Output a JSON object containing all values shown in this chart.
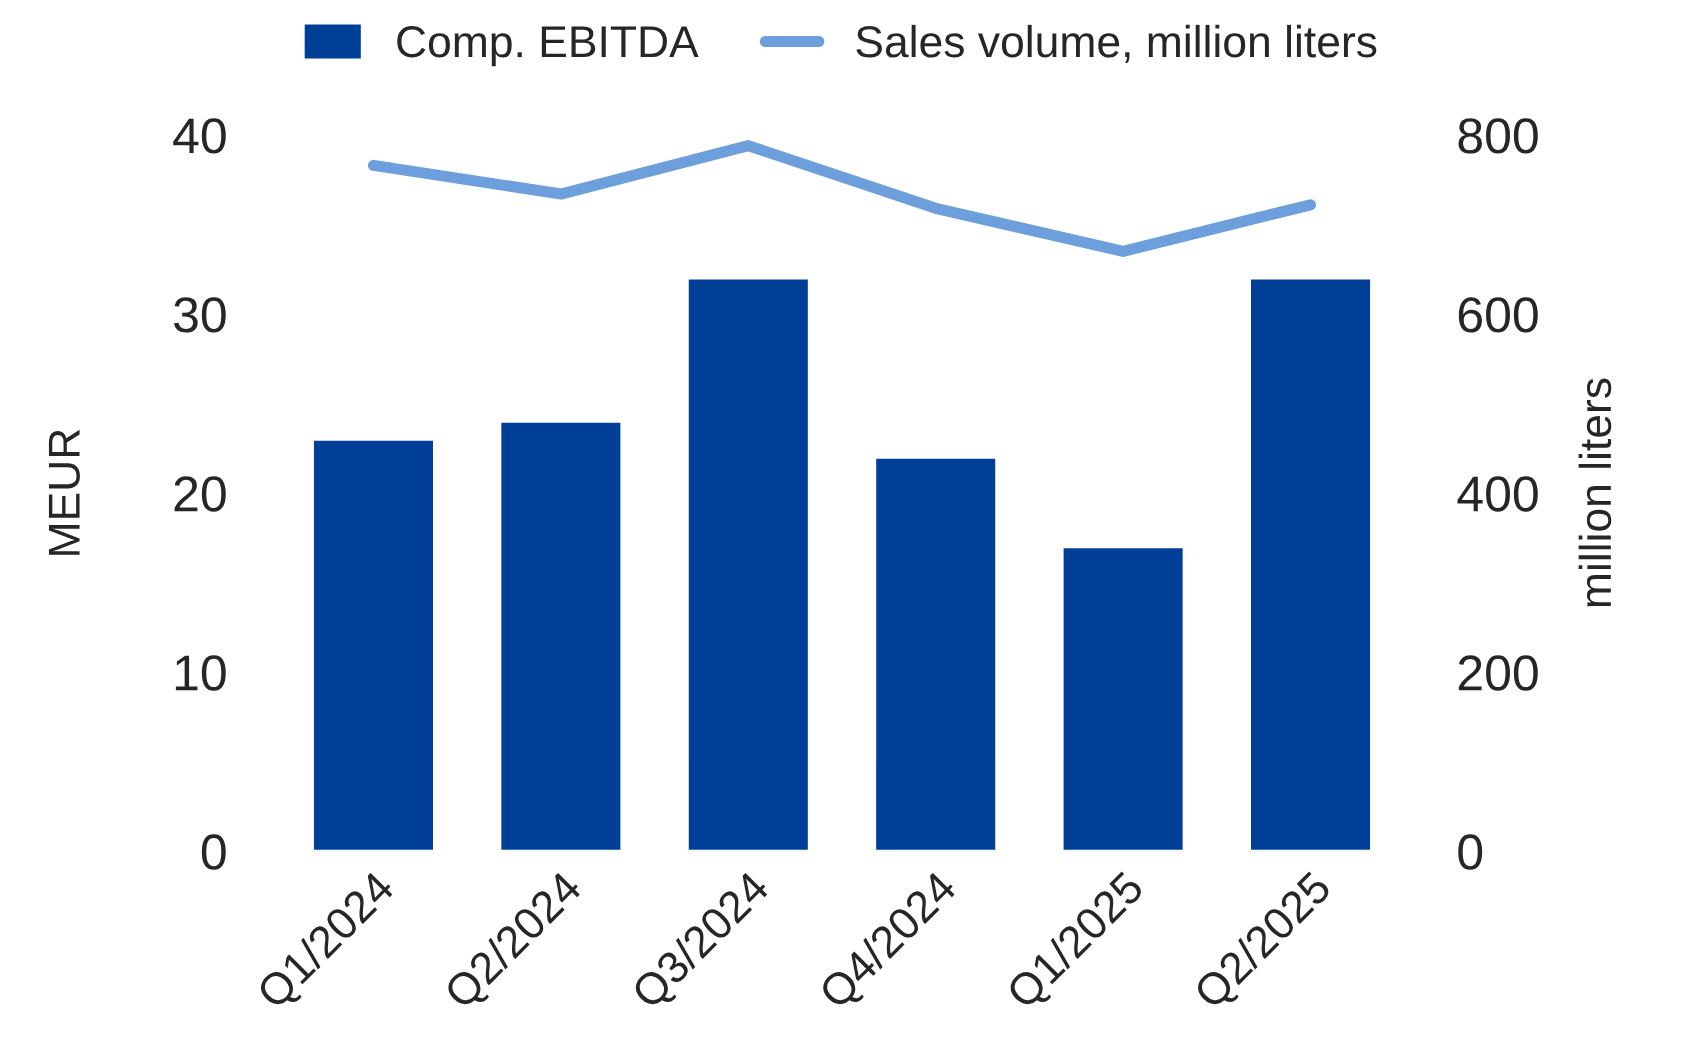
{
  "chart_data": {
    "type": "bar",
    "categories": [
      "Q1/2024",
      "Q2/2024",
      "Q3/2024",
      "Q4/2024",
      "Q1/2025",
      "Q2/2025"
    ],
    "series": [
      {
        "name": "Comp. EBITDA",
        "color": "#003f98",
        "values": [
          23,
          24,
          32,
          22,
          17,
          32
        ]
      },
      {
        "name": "Sales volume, million liters",
        "type": "line",
        "axis": "y2",
        "color": "#6c9fdc",
        "values": [
          766,
          734,
          788,
          718,
          670,
          722
        ]
      }
    ],
    "ylabel": "MEUR",
    "y2label": "million liters",
    "ylim": [
      0,
      40
    ],
    "yticks": [
      0,
      10,
      20,
      30,
      40
    ],
    "y2lim": [
      0,
      800
    ],
    "y2ticks": [
      0,
      200,
      400,
      600,
      800
    ],
    "legend": "top",
    "grid": false,
    "marker": "none",
    "line_style": "solid"
  }
}
